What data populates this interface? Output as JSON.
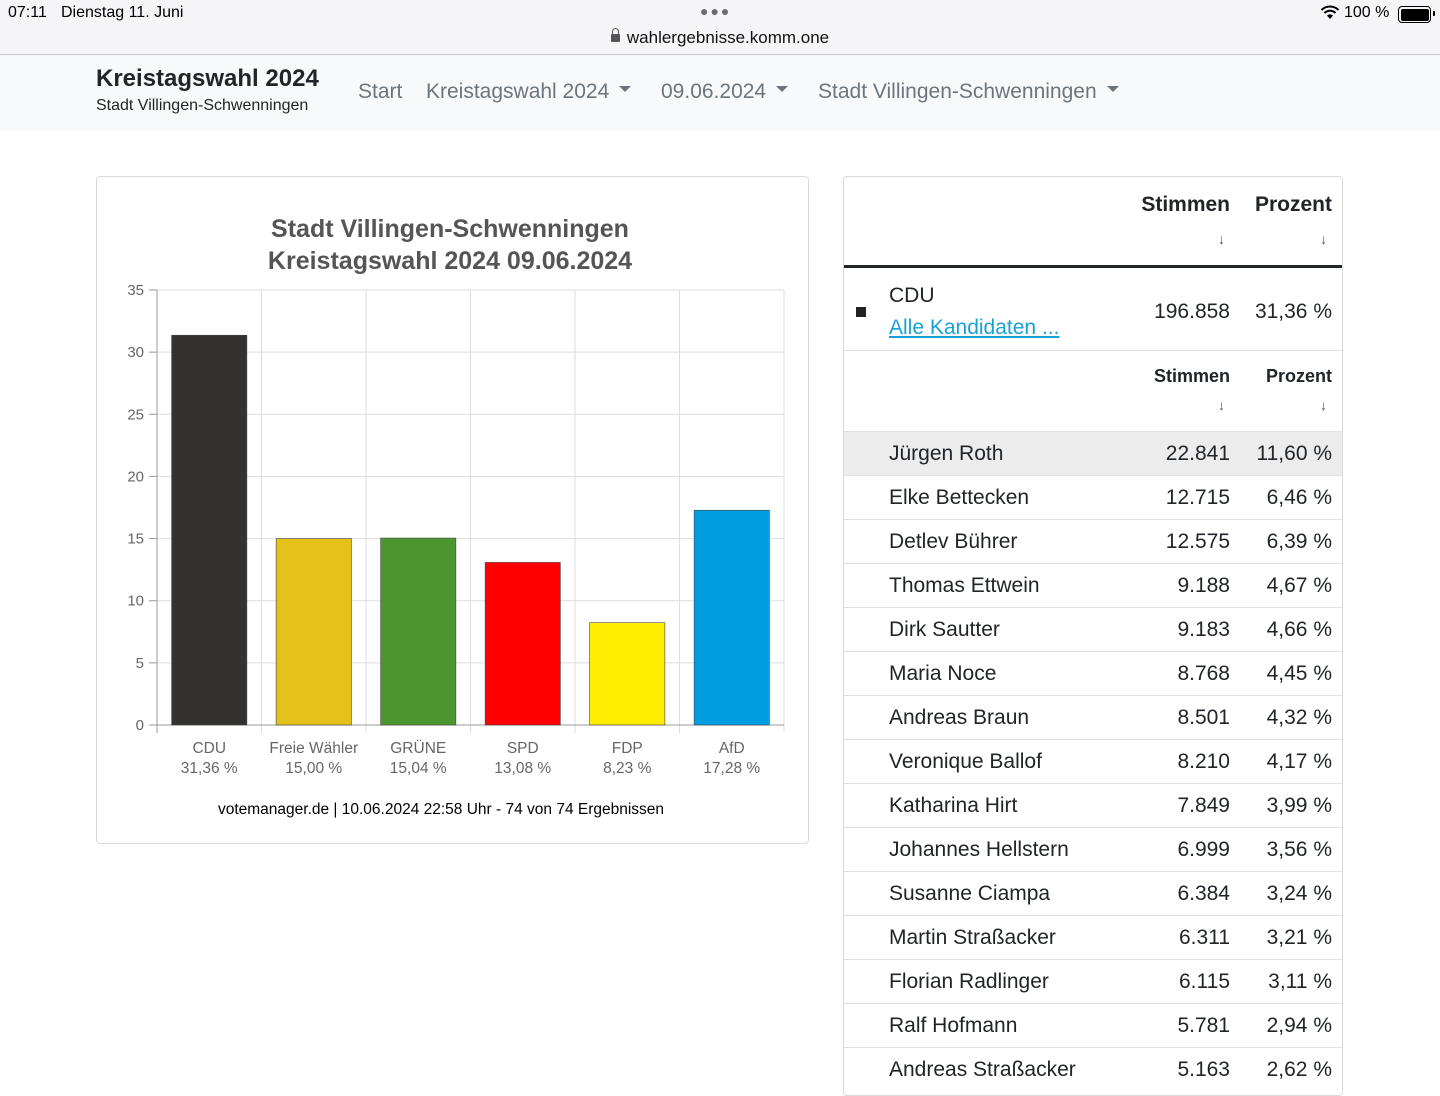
{
  "status_bar": {
    "time": "07:11",
    "date": "Dienstag 11. Juni",
    "url": "wahlergebnisse.komm.one",
    "battery": "100 %"
  },
  "navbar": {
    "brand_title": "Kreistagswahl 2024",
    "brand_subtitle": "Stadt Villingen-Schwenningen",
    "items": [
      {
        "label": "Start",
        "dropdown": false
      },
      {
        "label": "Kreistagswahl 2024",
        "dropdown": true
      },
      {
        "label": "09.06.2024",
        "dropdown": true
      },
      {
        "label": "Stadt Villingen-Schwenningen",
        "dropdown": true
      }
    ]
  },
  "chart_data": {
    "type": "bar",
    "title": [
      "Stadt Villingen-Schwenningen",
      "Kreistagswahl 2024 09.06.2024"
    ],
    "categories": [
      "CDU",
      "Freie Wähler",
      "GRÜNE",
      "SPD",
      "FDP",
      "AfD"
    ],
    "value_labels": [
      "31,36 %",
      "15,00 %",
      "15,04 %",
      "13,08 %",
      "8,23 %",
      "17,28 %"
    ],
    "values": [
      31.36,
      15.0,
      15.04,
      13.08,
      8.23,
      17.28
    ],
    "colors": [
      "#333230",
      "#e4c21a",
      "#4b962e",
      "#ff0000",
      "#ffec00",
      "#009ee0"
    ],
    "yticks": [
      0,
      5,
      10,
      15,
      20,
      25,
      30,
      35
    ],
    "ylim": [
      0,
      35
    ],
    "grid": true,
    "footer": "votemanager.de | 10.06.2024 22:58 Uhr - 74 von 74 Ergebnissen"
  },
  "results": {
    "header": {
      "votes": "Stimmen",
      "percent": "Prozent",
      "sort_icon": "↓"
    },
    "party": {
      "name": "CDU",
      "link": "Alle Kandidaten ...",
      "votes": "196.858",
      "percent": "31,36 %",
      "color": "#222222"
    },
    "candidate_header": {
      "votes": "Stimmen",
      "percent": "Prozent",
      "sort_icon": "↓"
    },
    "candidates": [
      {
        "name": "Jürgen Roth",
        "votes": "22.841",
        "percent": "11,60 %"
      },
      {
        "name": "Elke Bettecken",
        "votes": "12.715",
        "percent": "6,46 %"
      },
      {
        "name": "Detlev Bührer",
        "votes": "12.575",
        "percent": "6,39 %"
      },
      {
        "name": "Thomas Ettwein",
        "votes": "9.188",
        "percent": "4,67 %"
      },
      {
        "name": "Dirk Sautter",
        "votes": "9.183",
        "percent": "4,66 %"
      },
      {
        "name": "Maria Noce",
        "votes": "8.768",
        "percent": "4,45 %"
      },
      {
        "name": "Andreas Braun",
        "votes": "8.501",
        "percent": "4,32 %"
      },
      {
        "name": "Veronique Ballof",
        "votes": "8.210",
        "percent": "4,17 %"
      },
      {
        "name": "Katharina Hirt",
        "votes": "7.849",
        "percent": "3,99 %"
      },
      {
        "name": "Johannes Hellstern",
        "votes": "6.999",
        "percent": "3,56 %"
      },
      {
        "name": "Susanne Ciampa",
        "votes": "6.384",
        "percent": "3,24 %"
      },
      {
        "name": "Martin Straßacker",
        "votes": "6.311",
        "percent": "3,21 %"
      },
      {
        "name": "Florian Radlinger",
        "votes": "6.115",
        "percent": "3,11 %"
      },
      {
        "name": "Ralf Hofmann",
        "votes": "5.781",
        "percent": "2,94 %"
      },
      {
        "name": "Andreas Straßacker",
        "votes": "5.163",
        "percent": "2,62 %"
      }
    ]
  }
}
